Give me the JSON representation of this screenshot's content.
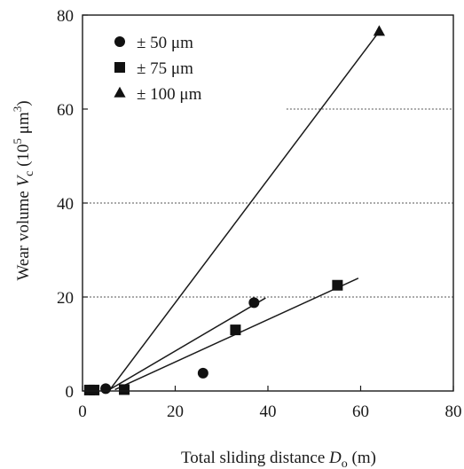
{
  "chart_data": {
    "type": "scatter",
    "xlabel": {
      "main": "Total sliding distance ",
      "var": "D",
      "sub": "o",
      "unit": " (m)"
    },
    "ylabel": {
      "main": "Wear volume ",
      "var": "V",
      "sub": "c",
      "unit_open": " (10",
      "sup": "5",
      "unit_mid": " μm",
      "sup2": "3",
      "unit_close": ")"
    },
    "xlim": [
      0,
      80
    ],
    "ylim": [
      0,
      80
    ],
    "xticks": [
      "0",
      "20",
      "40",
      "60",
      "80"
    ],
    "yticks": [
      "0",
      "20",
      "40",
      "60",
      "80"
    ],
    "grid": "horizontal dotted",
    "legend_position": "top-left",
    "series": [
      {
        "name": "± 50 μm",
        "marker": "circle",
        "points": [
          [
            2,
            0.2
          ],
          [
            5,
            0.5
          ],
          [
            26,
            3.8
          ],
          [
            37,
            18.8
          ]
        ],
        "fit": [
          [
            6,
            0.4
          ],
          [
            39.5,
            19.8
          ]
        ]
      },
      {
        "name": "± 75 μm",
        "marker": "square",
        "points": [
          [
            1.5,
            0.2
          ],
          [
            2.5,
            0.2
          ],
          [
            9,
            0.3
          ],
          [
            33,
            13
          ],
          [
            55,
            22.5
          ]
        ],
        "fit": [
          [
            7,
            0.3
          ],
          [
            59.5,
            24
          ]
        ]
      },
      {
        "name": "± 100 μm",
        "marker": "triangle",
        "points": [
          [
            64,
            76.5
          ]
        ],
        "fit": [
          [
            6,
            0.4
          ],
          [
            64,
            76.5
          ]
        ]
      }
    ]
  }
}
